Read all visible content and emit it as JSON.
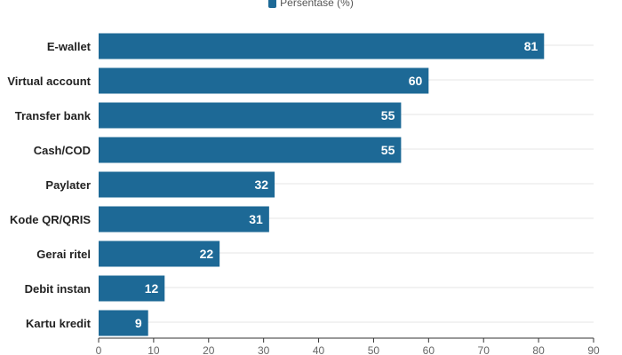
{
  "chart_data": {
    "type": "bar",
    "orientation": "horizontal",
    "legend": {
      "entries": [
        "Persentase (%)"
      ],
      "position": "top-center"
    },
    "categories": [
      "E-wallet",
      "Virtual account",
      "Transfer bank",
      "Cash/COD",
      "Paylater",
      "Kode QR/QRIS",
      "Gerai ritel",
      "Debit instan",
      "Kartu kredit"
    ],
    "series": [
      {
        "name": "Persentase (%)",
        "values": [
          81,
          60,
          55,
          55,
          32,
          31,
          22,
          12,
          9
        ]
      }
    ],
    "xlim": [
      0,
      90
    ],
    "xticks": [
      "0",
      "10",
      "20",
      "30",
      "40",
      "50",
      "60",
      "70",
      "80",
      "90"
    ],
    "grid": true,
    "data_labels": true,
    "colors": {
      "bar": "#1d6996",
      "grid": "#e6e6e6",
      "axis": "#333333"
    }
  }
}
